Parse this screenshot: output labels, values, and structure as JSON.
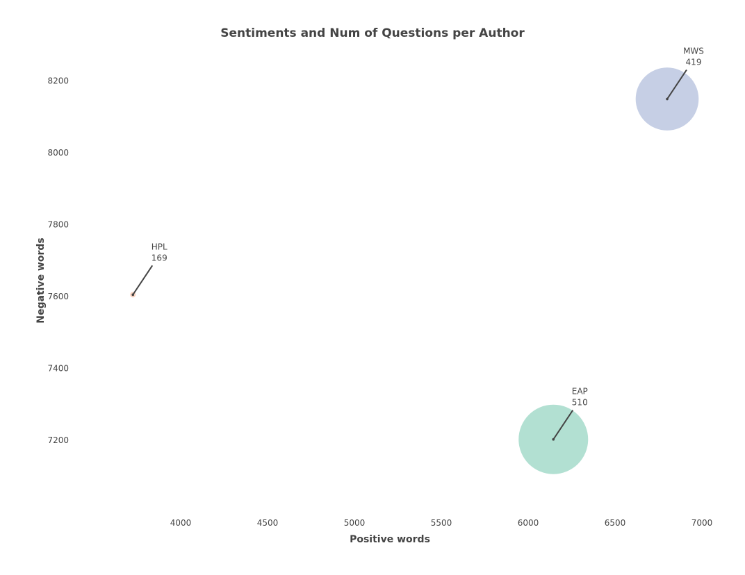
{
  "chart_data": {
    "type": "scatter",
    "title": "Sentiments and Num of Questions per Author",
    "xlabel": "Positive words",
    "ylabel": "Negative words",
    "xlim": [
      3480,
      7080
    ],
    "ylim": [
      7010,
      8300
    ],
    "xticks": [
      4000,
      4500,
      5000,
      5500,
      6000,
      6500,
      7000
    ],
    "yticks": [
      7200,
      7400,
      7600,
      7800,
      8000,
      8200
    ],
    "grid": false,
    "legend": false,
    "points": [
      {
        "name": "HPL",
        "x": 3725,
        "y": 7605,
        "size": 169,
        "color": "#f4a582",
        "label_line1": "HPL",
        "label_line2": "169"
      },
      {
        "name": "EAP",
        "x": 6145,
        "y": 7202,
        "size": 510,
        "color": "#66c2a5",
        "label_line1": "EAP",
        "label_line2": "510"
      },
      {
        "name": "MWS",
        "x": 6800,
        "y": 8150,
        "size": 419,
        "color": "#8da0cb",
        "label_line1": "MWS",
        "label_line2": "419"
      }
    ]
  }
}
